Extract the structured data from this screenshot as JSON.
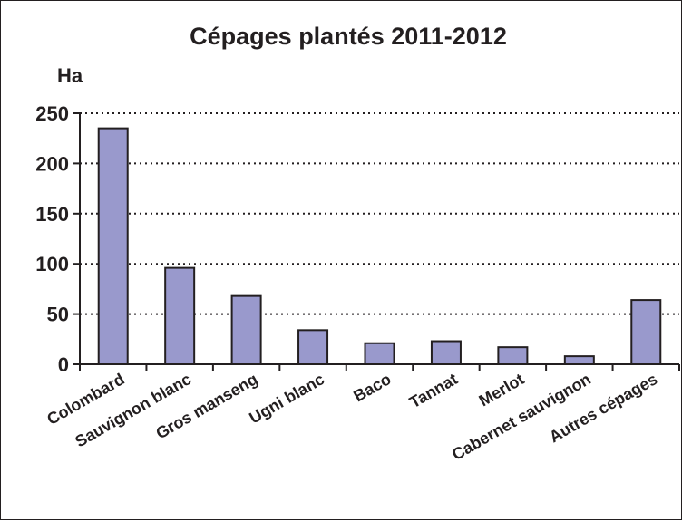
{
  "chart_data": {
    "type": "bar",
    "title": "Cépages plantés 2011-2012",
    "ylabel": "Ha",
    "xlabel": "",
    "categories": [
      "Colombard",
      "Sauvignon blanc",
      "Gros manseng",
      "Ugni blanc",
      "Baco",
      "Tannat",
      "Merlot",
      "Cabernet sauvignon",
      "Autres cépages"
    ],
    "values": [
      235,
      96,
      68,
      34,
      21,
      23,
      17,
      8,
      64
    ],
    "ylim": [
      0,
      250
    ],
    "yticks": [
      "0",
      "50",
      "100",
      "150",
      "200",
      "250"
    ],
    "grid": true,
    "grid_style": "dotted",
    "legend": "none",
    "bar_color": "#9999cc",
    "bar_edge_color": "#231f20"
  }
}
